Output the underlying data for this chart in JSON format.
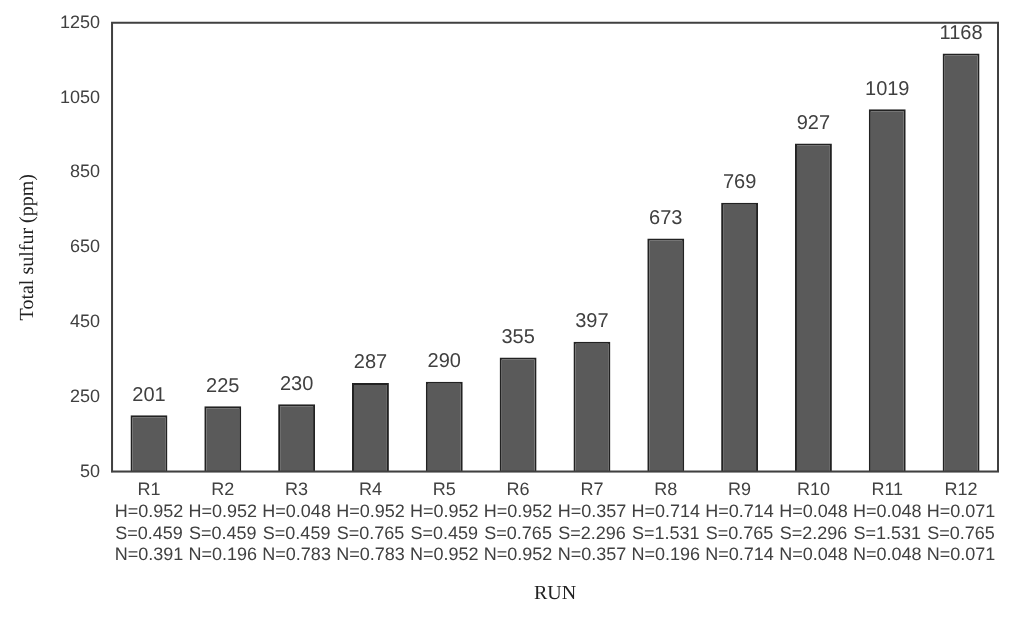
{
  "chart_data": {
    "type": "bar",
    "xlabel": "RUN",
    "ylabel": "Total sulfur (ppm)",
    "categories": [
      "R1\nH=0.952\nS=0.459\nN=0.391",
      "R2\nH=0.952\nS=0.459\nN=0.196",
      "R3\nH=0.048\nS=0.459\nN=0.783",
      "R4\nH=0.952\nS=0.765\nN=0.783",
      "R5\nH=0.952\nS=0.459\nN=0.952",
      "R6\nH=0.952\nS=0.765\nN=0.952",
      "R7\nH=0.357\nS=2.296\nN=0.357",
      "R8\nH=0.714\nS=1.531\nN=0.196",
      "R9\nH=0.714\nS=0.765\nN=0.714",
      "R10\nH=0.048\nS=2.296\nN=0.048",
      "R11\nH=0.048\nS=1.531\nN=0.048",
      "R12\nH=0.071\nS=0.765\nN=0.071"
    ],
    "values": [
      201,
      225,
      230,
      287,
      290,
      355,
      397,
      673,
      769,
      927,
      1019,
      1168
    ],
    "color": "#5a5a5a",
    "ylim": [
      50,
      1250
    ],
    "yticks": [
      50,
      250,
      450,
      650,
      850,
      1050,
      1250
    ],
    "grid": false,
    "data_labels": true
  }
}
